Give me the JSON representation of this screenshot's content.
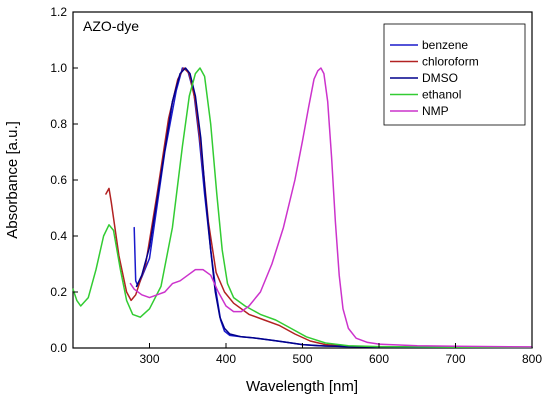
{
  "chart_data": {
    "type": "line",
    "title": "AZO-dye",
    "xlabel": "Wavelength [nm]",
    "ylabel": "Absorbance [a.u.]",
    "xlim": [
      200,
      800
    ],
    "ylim": [
      0,
      1.2
    ],
    "x_ticks": [
      300,
      400,
      500,
      600,
      700,
      800
    ],
    "y_ticks": [
      0.0,
      0.2,
      0.4,
      0.6,
      0.8,
      1.0,
      1.2
    ],
    "x_tick_labels": [
      "300",
      "400",
      "500",
      "600",
      "700",
      "800"
    ],
    "y_tick_labels": [
      "0.0",
      "0.2",
      "0.4",
      "0.6",
      "0.8",
      "1.0",
      "1.2"
    ],
    "grid": false,
    "legend_position": "top-right",
    "series": [
      {
        "name": "benzene",
        "color": "#1a1acc",
        "points": [
          [
            280,
            0.43
          ],
          [
            282,
            0.24
          ],
          [
            285,
            0.22
          ],
          [
            300,
            0.32
          ],
          [
            320,
            0.7
          ],
          [
            335,
            0.92
          ],
          [
            343,
            1.0
          ],
          [
            350,
            0.99
          ],
          [
            358,
            0.91
          ],
          [
            365,
            0.75
          ],
          [
            372,
            0.55
          ],
          [
            380,
            0.35
          ],
          [
            387,
            0.2
          ],
          [
            393,
            0.1
          ],
          [
            398,
            0.06
          ],
          [
            405,
            0.045
          ],
          [
            420,
            0.04
          ],
          [
            440,
            0.035
          ],
          [
            460,
            0.028
          ],
          [
            480,
            0.02
          ],
          [
            500,
            0.012
          ],
          [
            520,
            0.008
          ],
          [
            560,
            0.005
          ],
          [
            600,
            0.004
          ],
          [
            700,
            0.003
          ],
          [
            800,
            0.002
          ]
        ]
      },
      {
        "name": "chloroform",
        "color": "#b22222",
        "points": [
          [
            243,
            0.55
          ],
          [
            247,
            0.57
          ],
          [
            250,
            0.52
          ],
          [
            260,
            0.33
          ],
          [
            270,
            0.2
          ],
          [
            276,
            0.17
          ],
          [
            282,
            0.19
          ],
          [
            295,
            0.3
          ],
          [
            310,
            0.55
          ],
          [
            325,
            0.82
          ],
          [
            337,
            0.96
          ],
          [
            345,
            1.0
          ],
          [
            352,
            0.98
          ],
          [
            360,
            0.88
          ],
          [
            368,
            0.7
          ],
          [
            377,
            0.45
          ],
          [
            387,
            0.27
          ],
          [
            398,
            0.2
          ],
          [
            410,
            0.16
          ],
          [
            430,
            0.12
          ],
          [
            450,
            0.1
          ],
          [
            470,
            0.08
          ],
          [
            490,
            0.05
          ],
          [
            510,
            0.025
          ],
          [
            530,
            0.012
          ],
          [
            560,
            0.006
          ],
          [
            600,
            0.004
          ],
          [
            700,
            0.003
          ],
          [
            800,
            0.002
          ]
        ]
      },
      {
        "name": "DMSO",
        "color": "#00008b",
        "points": [
          [
            283,
            0.22
          ],
          [
            290,
            0.26
          ],
          [
            300,
            0.36
          ],
          [
            315,
            0.62
          ],
          [
            330,
            0.88
          ],
          [
            340,
            0.98
          ],
          [
            347,
            1.0
          ],
          [
            353,
            0.98
          ],
          [
            360,
            0.9
          ],
          [
            367,
            0.75
          ],
          [
            373,
            0.55
          ],
          [
            380,
            0.35
          ],
          [
            386,
            0.2
          ],
          [
            392,
            0.11
          ],
          [
            398,
            0.07
          ],
          [
            405,
            0.05
          ],
          [
            420,
            0.04
          ],
          [
            440,
            0.035
          ],
          [
            460,
            0.028
          ],
          [
            480,
            0.02
          ],
          [
            500,
            0.012
          ],
          [
            530,
            0.007
          ],
          [
            570,
            0.005
          ],
          [
            650,
            0.003
          ],
          [
            800,
            0.002
          ]
        ]
      },
      {
        "name": "ethanol",
        "color": "#33cc33",
        "points": [
          [
            200,
            0.21
          ],
          [
            205,
            0.17
          ],
          [
            210,
            0.15
          ],
          [
            220,
            0.18
          ],
          [
            230,
            0.28
          ],
          [
            240,
            0.4
          ],
          [
            247,
            0.44
          ],
          [
            253,
            0.42
          ],
          [
            262,
            0.28
          ],
          [
            270,
            0.17
          ],
          [
            278,
            0.12
          ],
          [
            288,
            0.11
          ],
          [
            300,
            0.14
          ],
          [
            315,
            0.22
          ],
          [
            330,
            0.43
          ],
          [
            343,
            0.72
          ],
          [
            352,
            0.9
          ],
          [
            360,
            0.98
          ],
          [
            366,
            1.0
          ],
          [
            372,
            0.97
          ],
          [
            380,
            0.8
          ],
          [
            388,
            0.55
          ],
          [
            395,
            0.35
          ],
          [
            402,
            0.23
          ],
          [
            410,
            0.18
          ],
          [
            425,
            0.15
          ],
          [
            445,
            0.12
          ],
          [
            465,
            0.1
          ],
          [
            485,
            0.07
          ],
          [
            505,
            0.04
          ],
          [
            530,
            0.018
          ],
          [
            560,
            0.008
          ],
          [
            600,
            0.005
          ],
          [
            700,
            0.003
          ],
          [
            800,
            0.002
          ]
        ]
      },
      {
        "name": "NMP",
        "color": "#cc33cc",
        "points": [
          [
            275,
            0.23
          ],
          [
            280,
            0.21
          ],
          [
            290,
            0.19
          ],
          [
            300,
            0.18
          ],
          [
            310,
            0.19
          ],
          [
            320,
            0.2
          ],
          [
            330,
            0.23
          ],
          [
            340,
            0.24
          ],
          [
            350,
            0.26
          ],
          [
            360,
            0.28
          ],
          [
            370,
            0.28
          ],
          [
            380,
            0.26
          ],
          [
            390,
            0.2
          ],
          [
            400,
            0.15
          ],
          [
            410,
            0.13
          ],
          [
            420,
            0.13
          ],
          [
            430,
            0.15
          ],
          [
            445,
            0.2
          ],
          [
            460,
            0.3
          ],
          [
            475,
            0.43
          ],
          [
            490,
            0.6
          ],
          [
            500,
            0.74
          ],
          [
            508,
            0.86
          ],
          [
            515,
            0.96
          ],
          [
            520,
            0.99
          ],
          [
            524,
            1.0
          ],
          [
            528,
            0.98
          ],
          [
            533,
            0.88
          ],
          [
            538,
            0.68
          ],
          [
            543,
            0.45
          ],
          [
            548,
            0.26
          ],
          [
            553,
            0.14
          ],
          [
            560,
            0.07
          ],
          [
            570,
            0.035
          ],
          [
            585,
            0.02
          ],
          [
            600,
            0.014
          ],
          [
            650,
            0.008
          ],
          [
            700,
            0.006
          ],
          [
            800,
            0.004
          ]
        ]
      }
    ]
  }
}
